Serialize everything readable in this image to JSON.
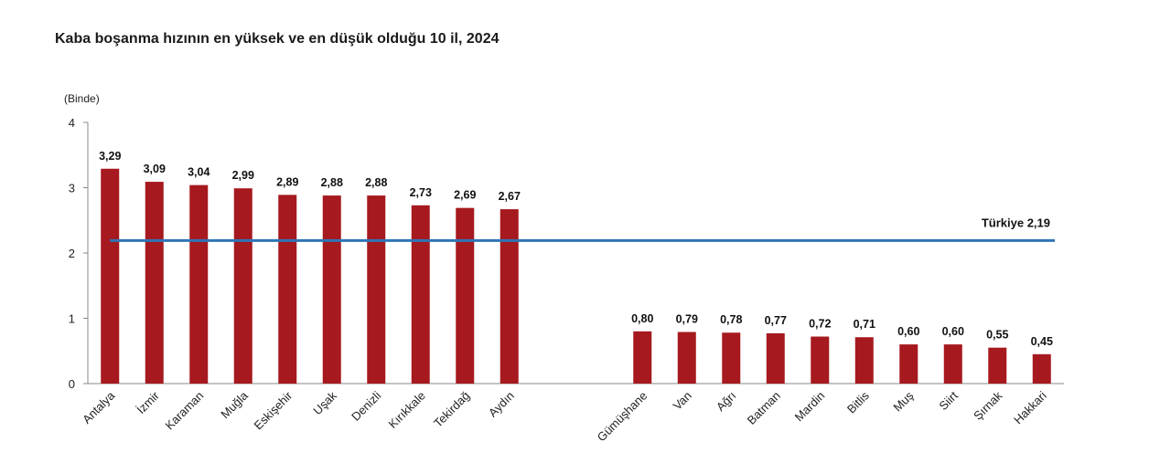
{
  "chart_data": {
    "type": "bar",
    "title": "Kaba boşanma hızının en yüksek ve en düşük olduğu 10 il, 2024",
    "ylabel": "(Binde)",
    "ylim": [
      0,
      4
    ],
    "yticks": [
      "0",
      "1",
      "2",
      "3",
      "4"
    ],
    "categories": [
      "Antalya",
      "İzmir",
      "Karaman",
      "Muğla",
      "Eskişehir",
      "Uşak",
      "Denizli",
      "Kırıkkale",
      "Tekirdağ",
      "Aydın",
      "",
      "",
      "Gümüşhane",
      "Van",
      "Ağrı",
      "Batman",
      "Mardin",
      "Bitlis",
      "Muş",
      "Siirt",
      "Şırnak",
      "Hakkari"
    ],
    "values": [
      3.29,
      3.09,
      3.04,
      2.99,
      2.89,
      2.88,
      2.88,
      2.73,
      2.69,
      2.67,
      null,
      null,
      0.8,
      0.79,
      0.78,
      0.77,
      0.72,
      0.71,
      0.6,
      0.6,
      0.55,
      0.45
    ],
    "value_labels": [
      "3,29",
      "3,09",
      "3,04",
      "2,99",
      "2,89",
      "2,88",
      "2,88",
      "2,73",
      "2,69",
      "2,67",
      "",
      "",
      "0,80",
      "0,79",
      "0,78",
      "0,77",
      "0,72",
      "0,71",
      "0,60",
      "0,60",
      "0,55",
      "0,45"
    ],
    "reference_line": {
      "label": "Türkiye  2,19",
      "value": 2.19
    },
    "bar_color": "#A6191F",
    "line_color": "#2E75B6",
    "grid": false
  }
}
